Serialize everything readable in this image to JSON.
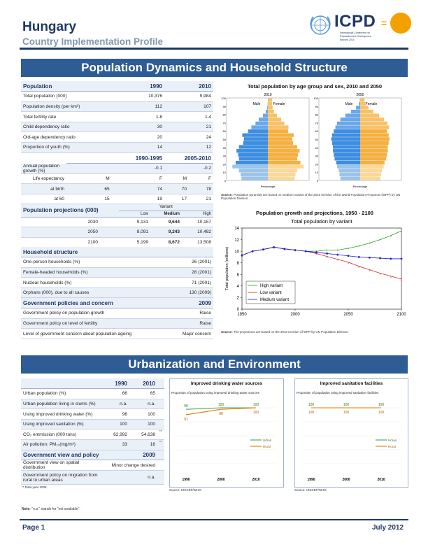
{
  "header": {
    "country": "Hungary",
    "subtitle": "Country Implementation Profile",
    "logo_text": "ICPD",
    "logo_eq": "=",
    "logo_small": [
      "International Conference on",
      "Population and Development",
      "Beyond 2014"
    ]
  },
  "banners": {
    "pop": "Population Dynamics and Household Structure",
    "urban": "Urbanization and Environment"
  },
  "population": {
    "head": [
      "Population",
      "1990",
      "2010"
    ],
    "rows": [
      [
        "Total population (000)",
        "10,376",
        "9,984"
      ],
      [
        "Population density (per km²)",
        "112",
        "107"
      ],
      [
        "Total fertility rate",
        "1.8",
        "1.4"
      ],
      [
        "Child dependency ratio",
        "30",
        "21"
      ],
      [
        "Old-age dependency ratio",
        "20",
        "24"
      ],
      [
        "Proportion of youth (%)",
        "14",
        "12"
      ]
    ],
    "period_head": [
      "1990-1995",
      "2005-2010"
    ],
    "growth": [
      "Annual population growth (%)",
      "-0.1",
      "-0.2"
    ],
    "le_label": "Life expectancy",
    "le_mf": [
      "M",
      "F",
      "M",
      "F"
    ],
    "le_rows": [
      [
        "at birth",
        "65",
        "74",
        "70",
        "78"
      ],
      [
        "at 60",
        "15",
        "19",
        "17",
        "21"
      ]
    ]
  },
  "projections": {
    "head": "Population projections (000)",
    "variant": "Variant",
    "cols": [
      "Low",
      "Medium",
      "High"
    ],
    "rows": [
      [
        "2030",
        "9,131",
        "9,644",
        "10,157"
      ],
      [
        "2050",
        "8,091",
        "9,243",
        "10,482"
      ],
      [
        "2100",
        "5,199",
        "8,672",
        "13,508"
      ]
    ]
  },
  "household": {
    "head": "Household structure",
    "rows": [
      [
        "One-person households (%)",
        "26 (2001)"
      ],
      [
        "Female-headed households (%)",
        "28 (2001)"
      ],
      [
        "Nuclear households (%)",
        "71 (2001)"
      ],
      [
        "Orphans (000), due to all causes",
        "130 (2009)"
      ]
    ]
  },
  "policy": {
    "head": [
      "Government policies and concern",
      "2009"
    ],
    "rows": [
      [
        "Government policy on population growth",
        "Raise"
      ],
      [
        "Government policy on level of fertility",
        "Raise"
      ],
      [
        "Level of government concern about population ageing",
        "Major concern"
      ]
    ]
  },
  "pyramid": {
    "title": "Total population by age group and sex, 2010 and 2050",
    "years": [
      "2010",
      "2050"
    ],
    "male": "Male",
    "female": "Female",
    "ages": [
      "100",
      "90",
      "80",
      "70",
      "60",
      "50",
      "40",
      "30",
      "20",
      "10",
      "0"
    ],
    "xlabel": "Percentage",
    "source_label": "Source:",
    "source": "Population pyramids are based on medium variant of the 2010 revision of the World Population Prospects (WPP) by UN Population Division."
  },
  "chart_data": [
    {
      "type": "line",
      "title": "Population growth and projections, 1950 - 2100",
      "subtitle": "Total population by variant",
      "ylabel": "Total population (millions)",
      "xlim": [
        1950,
        2100
      ],
      "ylim": [
        0,
        14
      ],
      "x_ticks": [
        "1950",
        "2000",
        "2050",
        "2100"
      ],
      "y_ticks": [
        "0",
        "2",
        "4",
        "6",
        "8",
        "10",
        "12",
        "14"
      ],
      "x": [
        1950,
        1960,
        1970,
        1980,
        1990,
        2000,
        2010,
        2020,
        2030,
        2040,
        2050,
        2060,
        2070,
        2080,
        2090,
        2100
      ],
      "series": [
        {
          "name": "High variant",
          "color": "#2ca02c",
          "values": [
            9.3,
            10.0,
            10.3,
            10.7,
            10.4,
            10.2,
            10.0,
            10.0,
            10.2,
            10.2,
            10.5,
            10.9,
            11.4,
            12.0,
            12.7,
            13.5
          ]
        },
        {
          "name": "Low variant",
          "color": "#d62728",
          "values": [
            9.3,
            10.0,
            10.3,
            10.7,
            10.4,
            10.2,
            10.0,
            9.6,
            9.1,
            8.6,
            8.1,
            7.4,
            6.8,
            6.2,
            5.7,
            5.2
          ]
        },
        {
          "name": "Medium variant",
          "color": "#1f1fd0",
          "values": [
            9.3,
            10.0,
            10.3,
            10.7,
            10.4,
            10.2,
            10.0,
            9.8,
            9.6,
            9.4,
            9.2,
            9.0,
            8.9,
            8.8,
            8.7,
            8.7
          ]
        }
      ],
      "source_label": "Source:",
      "source": "The projections are based on the 2010 revision of WPP by UN Population Division."
    },
    {
      "type": "line",
      "title": "Improved drinking water sources",
      "subtitle": "Proportion of population using improved drinking water sources",
      "x": [
        "1990",
        "2000",
        "2010"
      ],
      "ylim": [
        0,
        100
      ],
      "series": [
        {
          "name": "Urban",
          "color": "#4ca64c",
          "values": [
            98,
            100,
            100
          ]
        },
        {
          "name": "Rural",
          "color": "#e07b00",
          "values": [
            91,
            98,
            100
          ]
        }
      ],
      "source": "Source: UNICEF/WHO"
    },
    {
      "type": "line",
      "title": "Improved sanitation facilities",
      "subtitle": "Proportion of population using improved sanitation facilities",
      "x": [
        "1990",
        "2000",
        "2010"
      ],
      "ylim": [
        0,
        100
      ],
      "series": [
        {
          "name": "Urban",
          "color": "#4ca64c",
          "values": [
            100,
            100,
            100
          ]
        },
        {
          "name": "Rural",
          "color": "#e07b00",
          "values": [
            100,
            100,
            100
          ]
        }
      ],
      "source": "Source: UNICEF/WHO"
    }
  ],
  "urban": {
    "head": [
      "",
      "1990",
      "2010"
    ],
    "rows": [
      [
        "Urban population (%)",
        "66",
        "65",
        ""
      ],
      [
        "Urban population living in slums (%)",
        "n.a.",
        "n.a.",
        ""
      ],
      [
        "Using improved drinking water (%)",
        "96",
        "100",
        ""
      ],
      [
        "Using improved sanitation (%)",
        "100",
        "100",
        ""
      ],
      [
        "CO₂ emmission (000 tons)",
        "62,992",
        "54,638",
        "**"
      ],
      [
        "Air pollution: PM₁₀(mg/m³)",
        "33",
        "16",
        "**"
      ]
    ]
  },
  "govview": {
    "head": [
      "Government view and policy",
      "2009"
    ],
    "rows": [
      [
        "Government view on spatial distribution",
        "Minor change desired"
      ],
      [
        "Government policy on migration from rural to urban areas",
        "n.a."
      ]
    ],
    "note": "** Data year 2008."
  },
  "notes": {
    "label": "Note:",
    "text": "\"n.a.\" stands for \"not available\"."
  },
  "footer": {
    "page": "Page 1",
    "date": "July 2012"
  }
}
